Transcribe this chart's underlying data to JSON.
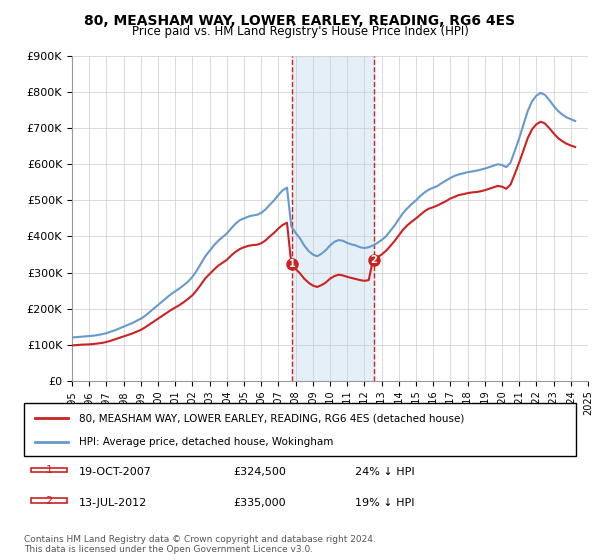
{
  "title": "80, MEASHAM WAY, LOWER EARLEY, READING, RG6 4ES",
  "subtitle": "Price paid vs. HM Land Registry's House Price Index (HPI)",
  "xlabel": "",
  "ylabel": "",
  "ylim": [
    0,
    900000
  ],
  "yticks": [
    0,
    100000,
    200000,
    300000,
    400000,
    500000,
    600000,
    700000,
    800000,
    900000
  ],
  "ytick_labels": [
    "£0",
    "£100K",
    "£200K",
    "£300K",
    "£400K",
    "£500K",
    "£600K",
    "£700K",
    "£800K",
    "£900K"
  ],
  "background_color": "#ffffff",
  "plot_bg_color": "#ffffff",
  "grid_color": "#cccccc",
  "hpi_color": "#6699cc",
  "price_color": "#cc2222",
  "marker_color": "#cc2222",
  "shade_color": "#cce0f0",
  "purchase1_date": 2007.8,
  "purchase1_price": 324500,
  "purchase1_label": "1",
  "purchase2_date": 2012.54,
  "purchase2_price": 335000,
  "purchase2_label": "2",
  "legend_line1": "80, MEASHAM WAY, LOWER EARLEY, READING, RG6 4ES (detached house)",
  "legend_line2": "HPI: Average price, detached house, Wokingham",
  "annotation1": "1    19-OCT-2007    £324,500    24% ↓ HPI",
  "annotation2": "2    13-JUL-2012    £335,000    19% ↓ HPI",
  "footer": "Contains HM Land Registry data © Crown copyright and database right 2024.\nThis data is licensed under the Open Government Licence v3.0.",
  "hpi_data": {
    "years": [
      1995.0,
      1995.25,
      1995.5,
      1995.75,
      1996.0,
      1996.25,
      1996.5,
      1996.75,
      1997.0,
      1997.25,
      1997.5,
      1997.75,
      1998.0,
      1998.25,
      1998.5,
      1998.75,
      1999.0,
      1999.25,
      1999.5,
      1999.75,
      2000.0,
      2000.25,
      2000.5,
      2000.75,
      2001.0,
      2001.25,
      2001.5,
      2001.75,
      2002.0,
      2002.25,
      2002.5,
      2002.75,
      2003.0,
      2003.25,
      2003.5,
      2003.75,
      2004.0,
      2004.25,
      2004.5,
      2004.75,
      2005.0,
      2005.25,
      2005.5,
      2005.75,
      2006.0,
      2006.25,
      2006.5,
      2006.75,
      2007.0,
      2007.25,
      2007.5,
      2007.75,
      2008.0,
      2008.25,
      2008.5,
      2008.75,
      2009.0,
      2009.25,
      2009.5,
      2009.75,
      2010.0,
      2010.25,
      2010.5,
      2010.75,
      2011.0,
      2011.25,
      2011.5,
      2011.75,
      2012.0,
      2012.25,
      2012.5,
      2012.75,
      2013.0,
      2013.25,
      2013.5,
      2013.75,
      2014.0,
      2014.25,
      2014.5,
      2014.75,
      2015.0,
      2015.25,
      2015.5,
      2015.75,
      2016.0,
      2016.25,
      2016.5,
      2016.75,
      2017.0,
      2017.25,
      2017.5,
      2017.75,
      2018.0,
      2018.25,
      2018.5,
      2018.75,
      2019.0,
      2019.25,
      2019.5,
      2019.75,
      2020.0,
      2020.25,
      2020.5,
      2020.75,
      2021.0,
      2021.25,
      2021.5,
      2021.75,
      2022.0,
      2022.25,
      2022.5,
      2022.75,
      2023.0,
      2023.25,
      2023.5,
      2023.75,
      2024.0,
      2024.25
    ],
    "values": [
      120000,
      121000,
      122000,
      123000,
      124000,
      125000,
      127000,
      129000,
      132000,
      136000,
      140000,
      145000,
      150000,
      155000,
      160000,
      166000,
      172000,
      180000,
      190000,
      200000,
      210000,
      220000,
      230000,
      240000,
      248000,
      256000,
      265000,
      275000,
      288000,
      305000,
      325000,
      345000,
      360000,
      375000,
      388000,
      398000,
      408000,
      422000,
      435000,
      445000,
      450000,
      455000,
      458000,
      460000,
      465000,
      475000,
      488000,
      500000,
      515000,
      528000,
      535000,
      428000,
      410000,
      395000,
      375000,
      360000,
      350000,
      345000,
      352000,
      362000,
      375000,
      385000,
      390000,
      388000,
      382000,
      378000,
      375000,
      370000,
      368000,
      370000,
      375000,
      382000,
      390000,
      400000,
      415000,
      430000,
      448000,
      465000,
      478000,
      490000,
      500000,
      512000,
      522000,
      530000,
      535000,
      540000,
      548000,
      555000,
      562000,
      568000,
      572000,
      575000,
      578000,
      580000,
      582000,
      585000,
      588000,
      592000,
      596000,
      600000,
      598000,
      592000,
      605000,
      638000,
      672000,
      710000,
      748000,
      775000,
      790000,
      798000,
      792000,
      778000,
      762000,
      748000,
      738000,
      730000,
      725000,
      720000
    ]
  },
  "price_data": {
    "years": [
      1995.0,
      1995.25,
      1995.5,
      1995.75,
      1996.0,
      1996.25,
      1996.5,
      1996.75,
      1997.0,
      1997.25,
      1997.5,
      1997.75,
      1998.0,
      1998.25,
      1998.5,
      1998.75,
      1999.0,
      1999.25,
      1999.5,
      1999.75,
      2000.0,
      2000.25,
      2000.5,
      2000.75,
      2001.0,
      2001.25,
      2001.5,
      2001.75,
      2002.0,
      2002.25,
      2002.5,
      2002.75,
      2003.0,
      2003.25,
      2003.5,
      2003.75,
      2004.0,
      2004.25,
      2004.5,
      2004.75,
      2005.0,
      2005.25,
      2005.5,
      2005.75,
      2006.0,
      2006.25,
      2006.5,
      2006.75,
      2007.0,
      2007.25,
      2007.5,
      2007.75,
      2008.0,
      2008.25,
      2008.5,
      2008.75,
      2009.0,
      2009.25,
      2009.5,
      2009.75,
      2010.0,
      2010.25,
      2010.5,
      2010.75,
      2011.0,
      2011.25,
      2011.5,
      2011.75,
      2012.0,
      2012.25,
      2012.5,
      2012.75,
      2013.0,
      2013.25,
      2013.5,
      2013.75,
      2014.0,
      2014.25,
      2014.5,
      2014.75,
      2015.0,
      2015.25,
      2015.5,
      2015.75,
      2016.0,
      2016.25,
      2016.5,
      2016.75,
      2017.0,
      2017.25,
      2017.5,
      2017.75,
      2018.0,
      2018.25,
      2018.5,
      2018.75,
      2019.0,
      2019.25,
      2019.5,
      2019.75,
      2020.0,
      2020.25,
      2020.5,
      2020.75,
      2021.0,
      2021.25,
      2021.5,
      2021.75,
      2022.0,
      2022.25,
      2022.5,
      2022.75,
      2023.0,
      2023.25,
      2023.5,
      2023.75,
      2024.0,
      2024.25
    ],
    "values": [
      98000,
      99000,
      100000,
      100500,
      101000,
      102000,
      103500,
      105000,
      107500,
      111000,
      115000,
      119000,
      123000,
      127000,
      131000,
      136000,
      141000,
      148000,
      156000,
      164000,
      172000,
      180000,
      188000,
      196000,
      203000,
      210000,
      218000,
      227000,
      237000,
      251000,
      267000,
      284000,
      296000,
      308000,
      319000,
      327000,
      335000,
      347000,
      357000,
      365000,
      370000,
      374000,
      376000,
      377000,
      381000,
      389000,
      400000,
      410000,
      422000,
      432000,
      438000,
      324500,
      310000,
      298000,
      283000,
      272000,
      264000,
      260000,
      265000,
      272000,
      283000,
      290000,
      294000,
      292000,
      288000,
      285000,
      282000,
      279000,
      277000,
      279000,
      335000,
      342000,
      350000,
      360000,
      373000,
      387000,
      403000,
      419000,
      431000,
      441000,
      450000,
      460000,
      470000,
      477000,
      481000,
      486000,
      492000,
      498000,
      505000,
      510000,
      515000,
      517000,
      520000,
      522000,
      523000,
      525000,
      528000,
      532000,
      536000,
      540000,
      538000,
      532000,
      544000,
      574000,
      605000,
      639000,
      673000,
      697000,
      711000,
      718000,
      713000,
      700000,
      686000,
      673000,
      664000,
      657000,
      652000,
      648000
    ]
  }
}
